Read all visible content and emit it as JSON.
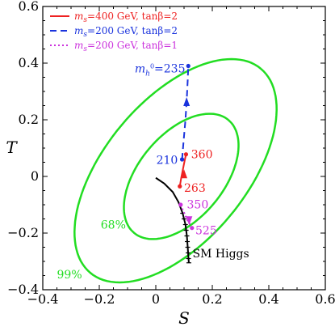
{
  "chart_data": {
    "type": "line",
    "title": "",
    "xlabel": "S",
    "ylabel": "T",
    "xlim": [
      -0.4,
      0.6
    ],
    "ylim": [
      -0.4,
      0.6
    ],
    "x_ticks": [
      -0.4,
      -0.2,
      0.0,
      0.2,
      0.4,
      0.6
    ],
    "x_tick_labels": [
      "−0.4",
      "−0.2",
      "0",
      "0.2",
      "0.4",
      "0.6"
    ],
    "y_ticks": [
      -0.4,
      -0.2,
      0.0,
      0.2,
      0.4,
      0.6
    ],
    "y_tick_labels": [
      "−0.4",
      "−0.2",
      "0",
      "0.2",
      "0.4",
      "0.6"
    ],
    "grid": false,
    "legend_position": "top-left",
    "colors": {
      "contour": "#22dd22",
      "red": "#ee2222",
      "blue": "#1a33dd",
      "magenta": "#cc33dd",
      "black": "#000000"
    },
    "series": [
      {
        "name": "ms=400 GeV, tanβ=2",
        "legend_main": "m",
        "legend_sub": "s",
        "legend_rest": "=400 GeV, tanβ=2",
        "color": "#ee2222",
        "dash": "solid",
        "x": [
          0.085,
          0.09,
          0.096,
          0.102,
          0.107
        ],
        "y": [
          -0.035,
          -0.005,
          0.025,
          0.055,
          0.078
        ]
      },
      {
        "name": "ms=200 GeV, tanβ=2",
        "legend_main": "m",
        "legend_sub": "s",
        "legend_rest": "=200 GeV, tanβ=2",
        "color": "#1a33dd",
        "dash": "8,5",
        "x": [
          0.093,
          0.098,
          0.105,
          0.11,
          0.113,
          0.115
        ],
        "y": [
          0.06,
          0.12,
          0.2,
          0.28,
          0.34,
          0.39
        ]
      },
      {
        "name": "ms=200 GeV, tanβ=1",
        "legend_main": "m",
        "legend_sub": "s",
        "legend_rest": "=200 GeV, tanβ=1",
        "color": "#cc33dd",
        "dash": "2,3",
        "x": [
          0.088,
          0.1,
          0.112,
          0.12,
          0.128
        ],
        "y": [
          -0.1,
          -0.128,
          -0.155,
          -0.168,
          -0.182
        ]
      }
    ],
    "arrows": [
      {
        "series": 0,
        "x": 0.1,
        "y": 0.005,
        "dir": "up"
      },
      {
        "series": 1,
        "x": 0.109,
        "y": 0.26,
        "dir": "up"
      },
      {
        "series": 2,
        "x": 0.118,
        "y": -0.152,
        "dir": "down"
      }
    ],
    "markers": [
      {
        "series": 0,
        "x": 0.085,
        "y": -0.035
      },
      {
        "series": 0,
        "x": 0.107,
        "y": 0.078
      },
      {
        "series": 1,
        "x": 0.093,
        "y": 0.06
      },
      {
        "series": 1,
        "x": 0.115,
        "y": 0.39
      },
      {
        "series": 2,
        "x": 0.088,
        "y": -0.1
      },
      {
        "series": 2,
        "x": 0.128,
        "y": -0.182
      }
    ],
    "sm_higgs": {
      "label": "SM Higgs",
      "x": [
        0.0,
        0.03,
        0.06,
        0.08,
        0.095,
        0.105,
        0.11,
        0.113,
        0.115,
        0.117
      ],
      "y": [
        -0.005,
        -0.025,
        -0.055,
        -0.09,
        -0.13,
        -0.17,
        -0.21,
        -0.25,
        -0.28,
        -0.305
      ],
      "tick_y": [
        -0.13,
        -0.15,
        -0.17,
        -0.19,
        -0.21,
        -0.23,
        -0.25,
        -0.27,
        -0.29,
        -0.305
      ]
    },
    "ellipses": [
      {
        "label": "68%",
        "cx": 0.09,
        "cy": 0.0,
        "rx": 0.26,
        "ry": 0.15,
        "angle_deg": 50
      },
      {
        "label": "99%",
        "cx": 0.07,
        "cy": 0.02,
        "rx": 0.47,
        "ry": 0.25,
        "angle_deg": 50
      }
    ],
    "annotations": [
      {
        "text": "360",
        "x": 0.125,
        "y": 0.078,
        "color": "#ee2222",
        "anchor": "start"
      },
      {
        "text": "263",
        "x": 0.1,
        "y": -0.04,
        "color": "#ee2222",
        "anchor": "start"
      },
      {
        "text": "210",
        "x": 0.078,
        "y": 0.058,
        "color": "#1a33dd",
        "anchor": "end"
      },
      {
        "text": "350",
        "x": 0.11,
        "y": -0.098,
        "color": "#cc33dd",
        "anchor": "start"
      },
      {
        "text": "525",
        "x": 0.14,
        "y": -0.19,
        "color": "#cc33dd",
        "anchor": "start"
      },
      {
        "text": "68%",
        "x": -0.195,
        "y": -0.17,
        "color": "#22dd22",
        "anchor": "start"
      },
      {
        "text": "99%",
        "x": -0.35,
        "y": -0.345,
        "color": "#22dd22",
        "anchor": "start"
      }
    ],
    "mh_label": {
      "main": "m",
      "sub": "h",
      "sup": "0",
      "rest": "=235",
      "x": 0.11,
      "y": 0.385,
      "color": "#1a33dd"
    }
  }
}
